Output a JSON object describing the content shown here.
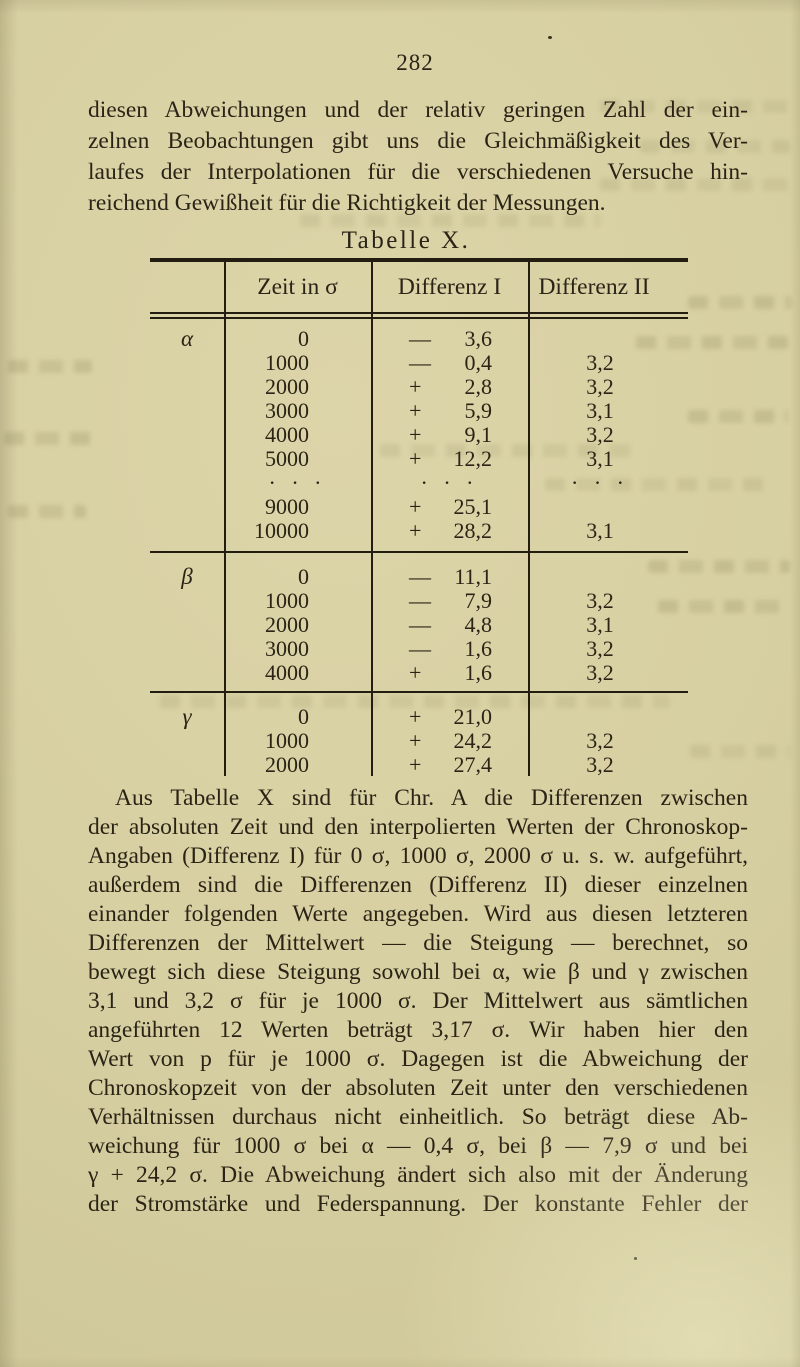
{
  "page": {
    "number": "282"
  },
  "colors": {
    "paper": "#d7d0a2",
    "ink": "#2b2416",
    "rule": "#231c10"
  },
  "paragraph_top": {
    "lines": [
      "diesen Abweichungen und der relativ geringen Zahl der ein-",
      "zelnen Beobachtungen gibt uns die Gleichmäßigkeit des Ver-",
      "laufes der Interpolationen für die verschiedenen Versuche hin-",
      "reichend Gewißheit für die Richtigkeit der Messungen."
    ]
  },
  "table": {
    "title": "Tabelle X.",
    "headers": [
      "",
      "Zeit in σ",
      "Differenz I",
      "Differenz II"
    ],
    "sections": [
      {
        "label": "α",
        "rows": [
          {
            "zeit": "0",
            "sign": "—",
            "diff1": "3,6",
            "diff2": ""
          },
          {
            "zeit": "1000",
            "sign": "—",
            "diff1": "0,4",
            "diff2": "3,2"
          },
          {
            "zeit": "2000",
            "sign": "+",
            "diff1": "2,8",
            "diff2": "3,2"
          },
          {
            "zeit": "3000",
            "sign": "+",
            "diff1": "5,9",
            "diff2": "3,1"
          },
          {
            "zeit": "4000",
            "sign": "+",
            "diff1": "9,1",
            "diff2": "3,2"
          },
          {
            "zeit": "5000",
            "sign": "+",
            "diff1": "12,2",
            "diff2": "3,1"
          },
          {
            "dots": true,
            "zeit": "· · ·",
            "sign": "",
            "diff1": "· · ·",
            "diff2": "· · ·"
          },
          {
            "zeit": "9000",
            "sign": "+",
            "diff1": "25,1",
            "diff2": ""
          },
          {
            "zeit": "10000",
            "sign": "+",
            "diff1": "28,2",
            "diff2": "3,1"
          }
        ]
      },
      {
        "label": "β",
        "rows": [
          {
            "zeit": "0",
            "sign": "—",
            "diff1": "11,1",
            "diff2": ""
          },
          {
            "zeit": "1000",
            "sign": "—",
            "diff1": "7,9",
            "diff2": "3,2"
          },
          {
            "zeit": "2000",
            "sign": "—",
            "diff1": "4,8",
            "diff2": "3,1"
          },
          {
            "zeit": "3000",
            "sign": "—",
            "diff1": "1,6",
            "diff2": "3,2"
          },
          {
            "zeit": "4000",
            "sign": "+",
            "diff1": "1,6",
            "diff2": "3,2"
          }
        ]
      },
      {
        "label": "γ",
        "rows": [
          {
            "zeit": "0",
            "sign": "+",
            "diff1": "21,0",
            "diff2": ""
          },
          {
            "zeit": "1000",
            "sign": "+",
            "diff1": "24,2",
            "diff2": "3,2"
          },
          {
            "zeit": "2000",
            "sign": "+",
            "diff1": "27,4",
            "diff2": "3,2"
          }
        ]
      }
    ]
  },
  "paragraph_bottom": {
    "lines": [
      "Aus Tabelle X sind für Chr. A die Differenzen zwischen",
      "der absoluten Zeit und den interpolierten Werten der Chronoskop-",
      "Angaben (Differenz I) für 0 σ, 1000 σ, 2000 σ u. s. w. aufgeführt,",
      "außerdem sind die Differenzen (Differenz II) dieser einzelnen",
      "einander folgenden Werte angegeben.  Wird aus diesen letzteren",
      "Differenzen der Mittelwert — die Steigung — berechnet, so",
      "bewegt sich diese Steigung sowohl bei α, wie β und γ zwischen",
      "3,1 und 3,2 σ für je 1000 σ.  Der Mittelwert aus sämtlichen",
      "angeführten 12 Werten beträgt 3,17 σ.  Wir haben hier den",
      "Wert von p für je 1000 σ.  Dagegen ist die Abweichung der",
      "Chronoskopzeit von der absoluten Zeit unter den verschiedenen",
      "Verhältnissen durchaus nicht einheitlich.  So beträgt diese Ab-",
      "weichung für 1000 σ bei α — 0,4 σ, bei β — 7,9 σ und bei",
      "γ + 24,2 σ.  Die Abweichung ändert sich also mit der Änderung",
      "der Stromstärke und Federspannung.  Der konstante Fehler der"
    ]
  }
}
